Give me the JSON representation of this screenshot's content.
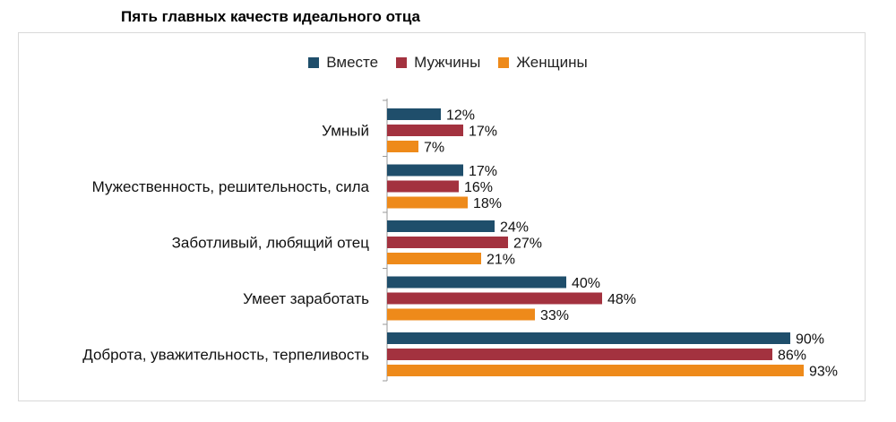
{
  "chart_data": {
    "type": "bar",
    "orientation": "horizontal",
    "title": "Пять главных качеств идеального отца",
    "categories": [
      "Умный",
      "Мужественность, решительность, сила",
      "Заботливый, любящий отец",
      "Умеет заработать",
      "Доброта, уважительность, терпеливость"
    ],
    "series": [
      {
        "name": "Вместе",
        "color": "#1f4e6b",
        "values": [
          12,
          17,
          24,
          40,
          90
        ],
        "labels": [
          "12%",
          "17%",
          "24%",
          "40%",
          "90%"
        ]
      },
      {
        "name": "Мужчины",
        "color": "#a3323f",
        "values": [
          17,
          16,
          27,
          48,
          86
        ],
        "labels": [
          "17%",
          "16%",
          "27%",
          "48%",
          "86%"
        ]
      },
      {
        "name": "Женщины",
        "color": "#ee8a1a",
        "values": [
          7,
          18,
          21,
          33,
          93
        ],
        "labels": [
          "7%",
          "18%",
          "21%",
          "33%",
          "93%"
        ]
      }
    ],
    "xlim": [
      0,
      100
    ],
    "legend_position": "top-center",
    "grid": false
  }
}
